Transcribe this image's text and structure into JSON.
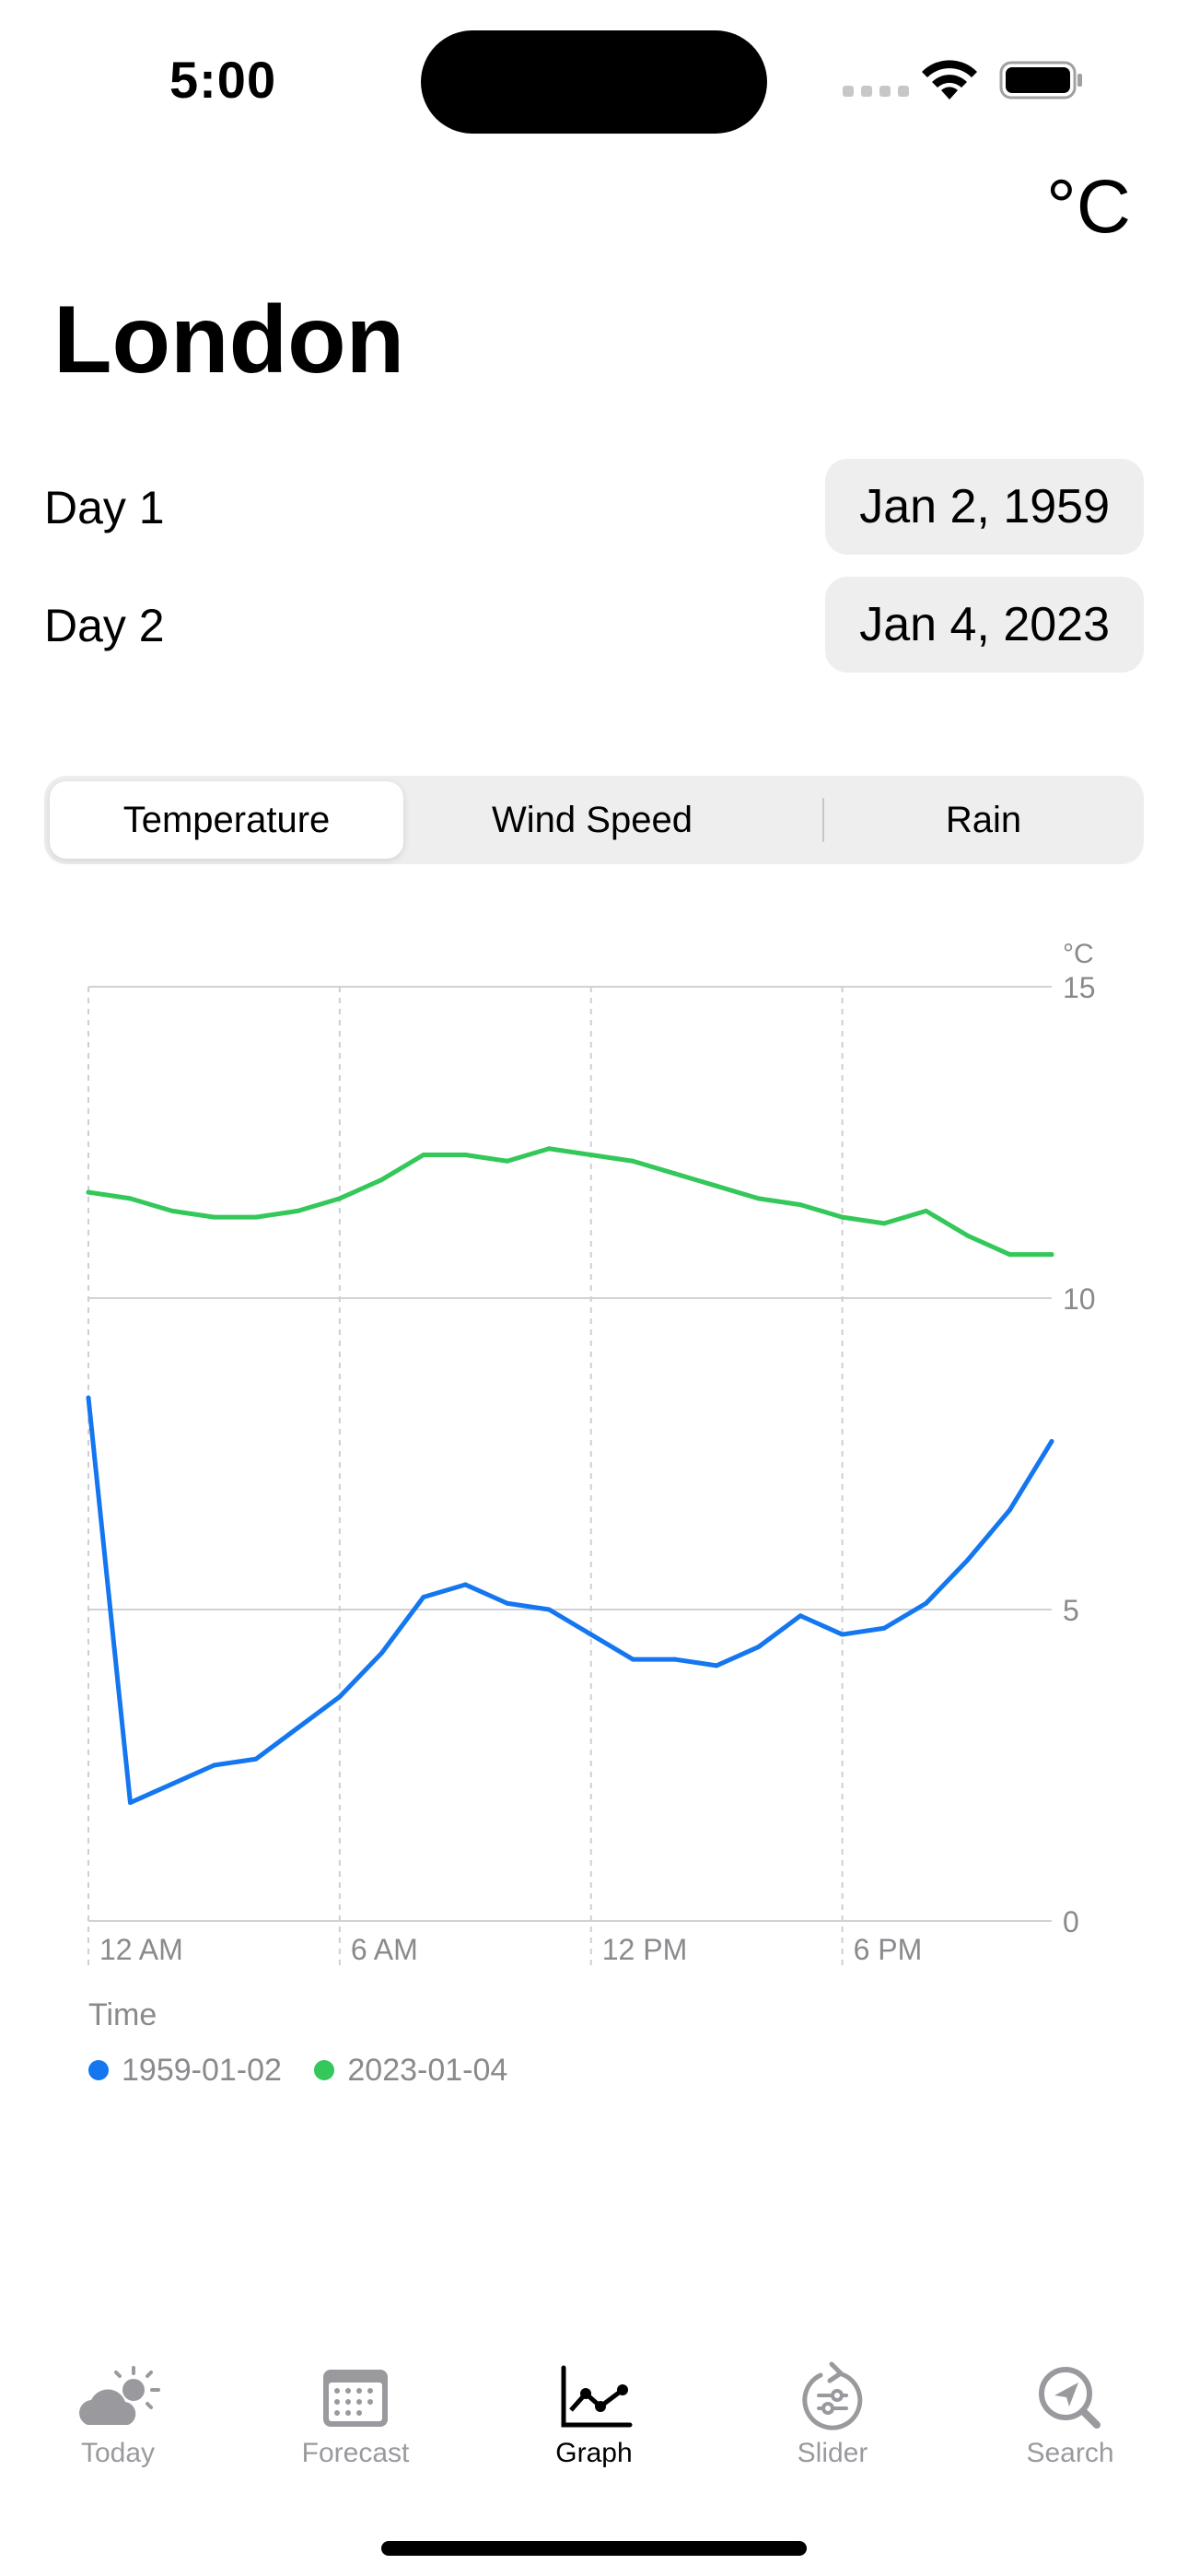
{
  "status_bar": {
    "time": "5:00"
  },
  "header": {
    "unit_toggle": "°C",
    "city": "London"
  },
  "days": [
    {
      "label": "Day 1",
      "date": "Jan 2, 1959"
    },
    {
      "label": "Day 2",
      "date": "Jan 4, 2023"
    }
  ],
  "segments": {
    "items": [
      "Temperature",
      "Wind Speed",
      "Rain"
    ],
    "selected": "Temperature"
  },
  "chart": {
    "xlabel": "Time"
  },
  "chart_data": {
    "type": "line",
    "x": [
      0,
      1,
      2,
      3,
      4,
      5,
      6,
      7,
      8,
      9,
      10,
      11,
      12,
      13,
      14,
      15,
      16,
      17,
      18,
      19,
      20,
      21,
      22,
      23
    ],
    "x_ticks": [
      {
        "value": 0,
        "label": "12 AM"
      },
      {
        "value": 6,
        "label": "6 AM"
      },
      {
        "value": 12,
        "label": "12 PM"
      },
      {
        "value": 18,
        "label": "6 PM"
      }
    ],
    "y_ticks": [
      0,
      5,
      10,
      15
    ],
    "ylim": [
      0,
      15
    ],
    "xlim": [
      0,
      23
    ],
    "yunit": "°C",
    "xlabel": "Time",
    "grid": true,
    "legend_position": "bottom",
    "series": [
      {
        "name": "1959-01-02",
        "color": "#1477F0",
        "values": [
          8.4,
          1.9,
          2.2,
          2.5,
          2.6,
          3.1,
          3.6,
          4.3,
          5.2,
          5.4,
          5.1,
          5.0,
          4.6,
          4.2,
          4.2,
          4.1,
          4.4,
          4.9,
          4.6,
          4.7,
          5.1,
          5.8,
          6.6,
          7.7
        ]
      },
      {
        "name": "2023-01-04",
        "color": "#34C759",
        "values": [
          11.7,
          11.6,
          11.4,
          11.3,
          11.3,
          11.4,
          11.6,
          11.9,
          12.3,
          12.3,
          12.2,
          12.4,
          12.3,
          12.2,
          12.0,
          11.8,
          11.6,
          11.5,
          11.3,
          11.2,
          11.4,
          11.0,
          10.7,
          10.7
        ]
      }
    ]
  },
  "tabs": [
    {
      "label": "Today",
      "icon": "cloud-sun-icon"
    },
    {
      "label": "Forecast",
      "icon": "calendar-icon"
    },
    {
      "label": "Graph",
      "icon": "chart-icon"
    },
    {
      "label": "Slider",
      "icon": "slider-icon"
    },
    {
      "label": "Search",
      "icon": "search-location-icon"
    }
  ],
  "active_tab": "Graph",
  "colors": {
    "accent": "#1477F0",
    "series_2": "#34C759",
    "grid": "#d1d1d6",
    "label": "#8a8a8e"
  }
}
